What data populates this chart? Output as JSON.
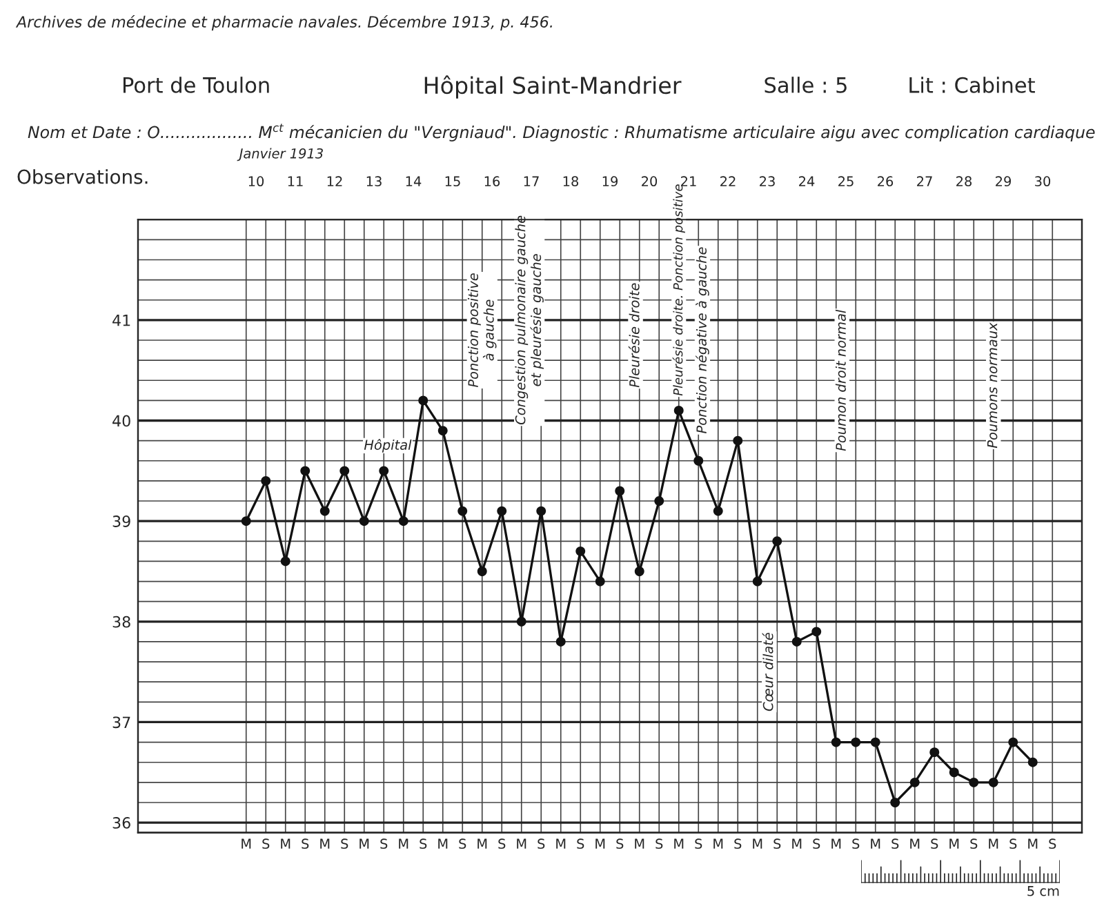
{
  "chart_data": {
    "type": "line",
    "title": "Hôpital Saint-Mandrier",
    "subtitle": "Nom et Date : O.................. M$^{ct}$ mécanicien du \"Vergniaud\". Diagnostic : Rhumatisme articulaire aigu avec complication cardiaque",
    "ylabel": "Observations.",
    "x2label": "Janvier 1913",
    "categories": [
      "M",
      "S",
      "M",
      "S",
      "M",
      "S",
      "M",
      "S",
      "M",
      "S",
      "M",
      "S",
      "M",
      "S",
      "M",
      "S",
      "M",
      "S",
      "M",
      "S",
      "M",
      "S",
      "M",
      "S",
      "M",
      "S",
      "M",
      "S",
      "M",
      "S",
      "M",
      "S",
      "M",
      "S",
      "M",
      "S",
      "M",
      "S",
      "M",
      "S",
      "M",
      "S"
    ],
    "series": [
      {
        "color": "#111111",
        "values": [
          39.0,
          39.4,
          38.6,
          39.5,
          39.1,
          39.5,
          39.0,
          39.5,
          39.0,
          40.2,
          39.9,
          39.1,
          38.5,
          39.1,
          38.0,
          39.1,
          37.8,
          38.7,
          38.4,
          39.3,
          38.5,
          39.2,
          40.1,
          39.6,
          39.1,
          39.8,
          38.4,
          38.8,
          37.8,
          37.9,
          36.8,
          36.8,
          36.8,
          36.2,
          36.4,
          36.7,
          36.5,
          36.4,
          36.4,
          36.8,
          36.6,
          null
        ]
      }
    ],
    "marker": "circle",
    "line_style": "solid",
    "grid": true,
    "ylim": [
      35.9,
      42.0
    ],
    "x2lim": [
      7.0,
      31.0
    ],
    "x2ticks": [
      10,
      11,
      12,
      13,
      14,
      15,
      16,
      17,
      18,
      19,
      20,
      21,
      22,
      23,
      24,
      25,
      26,
      27,
      28,
      29,
      30
    ],
    "yticks": [
      36,
      {
        "value": 36.2,
        "label": null
      },
      {
        "value": 36.4,
        "label": null
      },
      {
        "value": 36.6,
        "label": null
      },
      {
        "value": 36.8,
        "label": null
      },
      37,
      {
        "value": 37.2,
        "label": null
      },
      {
        "value": 37.4,
        "label": null
      },
      {
        "value": 37.6,
        "label": null
      },
      {
        "value": 37.8,
        "label": null
      },
      38,
      {
        "value": 38.2,
        "label": null
      },
      {
        "value": 38.4,
        "label": null
      },
      {
        "value": 38.6,
        "label": null
      },
      {
        "value": 38.8,
        "label": null
      },
      39,
      {
        "value": 39.2,
        "label": null
      },
      {
        "value": 39.4,
        "label": null
      },
      {
        "value": 39.6,
        "label": null
      },
      {
        "value": 39.8,
        "label": null
      },
      40,
      {
        "value": 40.2,
        "label": null
      },
      {
        "value": 40.4,
        "label": null
      },
      {
        "value": 40.6,
        "label": null
      },
      {
        "value": 40.8,
        "label": null
      },
      41,
      {
        "value": 41.2,
        "label": null
      },
      {
        "value": 41.4,
        "label": null
      },
      {
        "value": 41.6,
        "label": null
      },
      {
        "value": 41.8,
        "label": null
      }
    ],
    "annotations": [
      "Archives de médecine et pharmacie navales. Décembre 1913, p. 456.",
      "Port de Toulon",
      "Salle : 5",
      "Lit : Cabinet",
      "5 cm",
      "Hôpital",
      "Ponction positive\nà gauche",
      "Congestion pulmonaire gauche\net pleurésie gauche",
      "Pleurésie droite",
      "Pleurésie droite. Ponction positive",
      "Ponction négative à gauche",
      "Cœur dilaté",
      "Poumon droit normal",
      "Poumons normaux"
    ]
  }
}
